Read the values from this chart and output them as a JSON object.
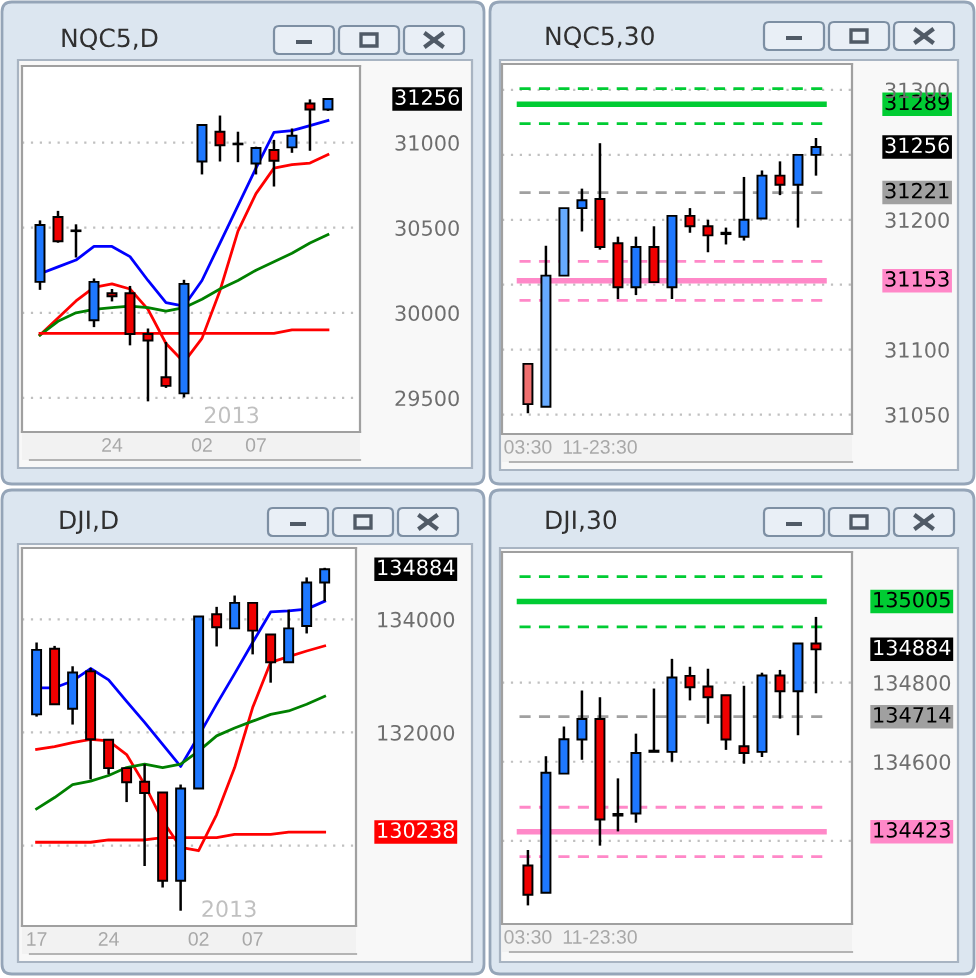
{
  "chart_data": [
    {
      "type": "candlestick",
      "title": "NQC5,D",
      "categories": [
        null,
        null,
        null,
        null,
        "24",
        null,
        null,
        null,
        null,
        "02",
        null,
        null,
        "07",
        null,
        null,
        null,
        null
      ],
      "ohlc": [
        [
          30182,
          30543,
          30135,
          30516
        ],
        [
          30563,
          30599,
          30412,
          30420
        ],
        [
          30480,
          30520,
          30325,
          30484
        ],
        [
          29956,
          30202,
          29916,
          30182
        ],
        [
          30115,
          30140,
          30067,
          30098
        ],
        [
          30115,
          30158,
          29809,
          29876
        ],
        [
          29876,
          29908,
          29480,
          29837
        ],
        [
          29622,
          29829,
          29559,
          29571
        ],
        [
          29527,
          30194,
          29503,
          30170
        ],
        [
          30889,
          31103,
          30813,
          31103
        ],
        [
          31064,
          31159,
          30889,
          30984
        ],
        [
          30990,
          31064,
          30885,
          30994
        ],
        [
          30877,
          30976,
          30813,
          30968
        ],
        [
          30956,
          31016,
          30742,
          30893
        ],
        [
          30972,
          31083,
          30940,
          31040
        ],
        [
          31230,
          31254,
          30952,
          31195
        ],
        [
          31195,
          31262,
          31186,
          31256
        ]
      ],
      "colors": [
        "#1e78ff",
        "#f00000",
        "#1e78ff",
        "#1e78ff",
        "#f00000",
        "#f00000",
        "#f00000",
        "#f00000",
        "#1e78ff",
        "#1e78ff",
        "#f00000",
        "#3399ff",
        "#1e78ff",
        "#f00000",
        "#1e78ff",
        "#f00000",
        "#1e78ff"
      ],
      "series": [
        {
          "type": "line",
          "color": "#0000ff",
          "values": [
            30230,
            30270,
            30310,
            30390,
            30390,
            30330,
            30190,
            30060,
            30040,
            30190,
            30410,
            30630,
            30850,
            31060,
            31070,
            31100,
            31130
          ]
        },
        {
          "type": "line",
          "color": "#ff0000",
          "values": [
            29870,
            29970,
            30070,
            30150,
            30170,
            30140,
            30020,
            29820,
            29710,
            29850,
            30130,
            30480,
            30700,
            30850,
            30870,
            30880,
            30930
          ]
        },
        {
          "type": "line",
          "color": "#008000",
          "values": [
            29870,
            29950,
            30000,
            30020,
            30030,
            30040,
            30030,
            30010,
            30030,
            30080,
            30140,
            30190,
            30250,
            30300,
            30350,
            30410,
            30460
          ]
        },
        {
          "type": "line",
          "color": "#ff0000",
          "values": [
            29880,
            29880,
            29880,
            29880,
            29880,
            29880,
            29880,
            29880,
            29880,
            29880,
            29880,
            29880,
            29880,
            29880,
            29900,
            29900,
            29900
          ]
        }
      ],
      "ylim": [
        29300,
        31450
      ],
      "yticks": [
        29500,
        30000,
        30500,
        31000
      ],
      "grid": "y",
      "annotations": [
        "31256",
        "2013"
      ]
    },
    {
      "type": "candlestick",
      "title": "NQC5,30",
      "categories": [
        "03:30",
        null,
        null,
        null,
        "11-23:30",
        null,
        null,
        null,
        null,
        null,
        null,
        null,
        null,
        null,
        null,
        null,
        null
      ],
      "ohlc": [
        [
          31089,
          31089,
          31051,
          31058
        ],
        [
          31056,
          31180,
          31056,
          31157
        ],
        [
          31157,
          31209,
          31157,
          31209
        ],
        [
          31209,
          31224,
          31191,
          31215
        ],
        [
          31216,
          31259,
          31177,
          31179
        ],
        [
          31182,
          31187,
          31139,
          31148
        ],
        [
          31148,
          31187,
          31142,
          31179
        ],
        [
          31179,
          31195,
          31152,
          31152
        ],
        [
          31148,
          31203,
          31139,
          31203
        ],
        [
          31203,
          31209,
          31190,
          31195
        ],
        [
          31195,
          31200,
          31175,
          31188
        ],
        [
          31189,
          31194,
          31181,
          31190
        ],
        [
          31187,
          31233,
          31184,
          31200
        ],
        [
          31201,
          31238,
          31201,
          31234
        ],
        [
          31234,
          31245,
          31219,
          31227
        ],
        [
          31227,
          31250,
          31194,
          31250
        ],
        [
          31250,
          31263,
          31234,
          31256
        ]
      ],
      "colors": [
        "#f07070",
        "#66aaff",
        "#66aaff",
        "#1e78ff",
        "#f00000",
        "#f00000",
        "#1e78ff",
        "#f00000",
        "#1e78ff",
        "#f00000",
        "#f00000",
        "#1e78ff",
        "#1e78ff",
        "#1e78ff",
        "#f00000",
        "#1e78ff",
        "#1e78ff"
      ],
      "ylim": [
        31035,
        31320
      ],
      "yticks": [
        31050,
        31100,
        {
          "value": 31150,
          "label": null
        },
        31200,
        {
          "value": 31250,
          "label": null
        },
        31300
      ],
      "grid": "y",
      "ref_lines": [
        {
          "axis": "y",
          "value": 31301,
          "color": "#00cc33",
          "line_style": "dashed"
        },
        {
          "axis": "y",
          "value": 31289,
          "label": "31289",
          "color": "#00cc33",
          "line_style": "solid"
        },
        {
          "axis": "y",
          "value": 31274,
          "color": "#00cc33",
          "line_style": "dashed"
        },
        {
          "axis": "y",
          "value": 31221,
          "label": "31221",
          "color": "#a0a0a0",
          "line_style": "dashed"
        },
        {
          "axis": "y",
          "value": 31168,
          "color": "#ff88c8",
          "line_style": "dashed"
        },
        {
          "axis": "y",
          "value": 31153,
          "label": "31153",
          "color": "#ff88c8",
          "line_style": "solid"
        },
        {
          "axis": "y",
          "value": 31138,
          "color": "#ff88c8",
          "line_style": "dashed"
        }
      ],
      "annotations": [
        "31256"
      ]
    },
    {
      "type": "candlestick",
      "title": "DJI,D",
      "categories": [
        "17",
        null,
        null,
        null,
        "24",
        null,
        null,
        null,
        null,
        "02",
        null,
        null,
        "07",
        null,
        null,
        null,
        null
      ],
      "ohlc": [
        [
          132320,
          133590,
          132280,
          133460
        ],
        [
          133480,
          133530,
          132500,
          132500
        ],
        [
          132420,
          133170,
          132140,
          133060
        ],
        [
          133080,
          133140,
          131170,
          131880
        ],
        [
          131870,
          131870,
          131260,
          131370
        ],
        [
          131370,
          131370,
          130770,
          131120
        ],
        [
          131130,
          131440,
          129640,
          130930
        ],
        [
          130940,
          130940,
          129260,
          129380
        ],
        [
          129380,
          131080,
          128850,
          131010
        ],
        [
          131010,
          134050,
          131010,
          134050
        ],
        [
          134090,
          134220,
          133520,
          133860
        ],
        [
          133840,
          134420,
          133840,
          134290
        ],
        [
          134290,
          134290,
          133380,
          133800
        ],
        [
          133730,
          133730,
          132880,
          133240
        ],
        [
          133240,
          134170,
          133240,
          133840
        ],
        [
          133880,
          134740,
          133750,
          134650
        ],
        [
          134650,
          134910,
          134320,
          134884
        ]
      ],
      "colors": [
        "#1e78ff",
        "#f00000",
        "#1e78ff",
        "#f00000",
        "#f00000",
        "#f00000",
        "#f00000",
        "#f00000",
        "#1e78ff",
        "#1e78ff",
        "#f00000",
        "#1e78ff",
        "#f00000",
        "#f00000",
        "#1e78ff",
        "#1e78ff",
        "#1e78ff"
      ],
      "series": [
        {
          "type": "line",
          "color": "#0000ff",
          "values": [
            132790,
            132790,
            132910,
            133130,
            132930,
            132550,
            132180,
            131790,
            131400,
            131940,
            132500,
            133040,
            133590,
            134130,
            134150,
            134180,
            134320
          ]
        },
        {
          "type": "line",
          "color": "#ff0000",
          "values": [
            131700,
            131750,
            131820,
            131880,
            131850,
            131610,
            131080,
            130440,
            129970,
            129910,
            130550,
            131380,
            132440,
            133240,
            133340,
            133440,
            133530
          ]
        },
        {
          "type": "line",
          "color": "#008000",
          "values": [
            130650,
            130850,
            131080,
            131140,
            131240,
            131380,
            131440,
            131380,
            131440,
            131670,
            131940,
            132080,
            132200,
            132320,
            132380,
            132500,
            132640
          ]
        },
        {
          "type": "line",
          "color": "#ff0000",
          "values": [
            130060,
            130060,
            130060,
            130060,
            130100,
            130100,
            130100,
            130140,
            130140,
            130140,
            130140,
            130200,
            130200,
            130200,
            130240,
            130240,
            130240
          ]
        }
      ],
      "ylim": [
        128580,
        135260
      ],
      "yticks": [
        {
          "value": 130000,
          "label": null
        },
        132000,
        134000
      ],
      "grid": "y",
      "annotations": [
        "134884",
        "2013",
        "130238"
      ]
    },
    {
      "type": "candlestick",
      "title": "DJI,30",
      "categories": [
        "03:30",
        null,
        null,
        null,
        "11-23:30",
        null,
        null,
        null,
        null,
        null,
        null,
        null,
        null,
        null,
        null,
        null,
        null
      ],
      "ohlc": [
        [
          134338,
          134377,
          134237,
          134264
        ],
        [
          134269,
          134614,
          134269,
          134572
        ],
        [
          134570,
          134689,
          134570,
          134657
        ],
        [
          134656,
          134780,
          134605,
          134708
        ],
        [
          134708,
          134763,
          134388,
          134454
        ],
        [
          134464,
          134558,
          134424,
          134468
        ],
        [
          134469,
          134671,
          134446,
          134622
        ],
        [
          134625,
          134785,
          134625,
          134628
        ],
        [
          134625,
          134860,
          134600,
          134813
        ],
        [
          134817,
          134840,
          134755,
          134788
        ],
        [
          134790,
          134835,
          134696,
          134763
        ],
        [
          134768,
          134768,
          134630,
          134656
        ],
        [
          134639,
          134792,
          134595,
          134622
        ],
        [
          134625,
          134825,
          134612,
          134818
        ],
        [
          134818,
          134832,
          134709,
          134778
        ],
        [
          134778,
          134899,
          134667,
          134899
        ],
        [
          134899,
          134966,
          134773,
          134884
        ]
      ],
      "colors": [
        "#f00000",
        "#1e78ff",
        "#1e78ff",
        "#1e78ff",
        "#f00000",
        "#3399ff",
        "#1e78ff",
        "#3399ff",
        "#1e78ff",
        "#f00000",
        "#f00000",
        "#f00000",
        "#f00000",
        "#1e78ff",
        "#f00000",
        "#1e78ff",
        "#f00000"
      ],
      "ylim": [
        134190,
        135130
      ],
      "yticks": [
        {
          "value": 134400,
          "label": null
        },
        134600,
        134800
      ],
      "grid": "y",
      "ref_lines": [
        {
          "axis": "y",
          "value": 135068,
          "color": "#00cc33",
          "line_style": "dashed"
        },
        {
          "axis": "y",
          "value": 135005,
          "label": "135005",
          "color": "#00cc33",
          "line_style": "solid"
        },
        {
          "axis": "y",
          "value": 134941,
          "color": "#00cc33",
          "line_style": "dashed"
        },
        {
          "axis": "y",
          "value": 134714,
          "label": "134714",
          "color": "#a0a0a0",
          "line_style": "dashed"
        },
        {
          "axis": "y",
          "value": 134485,
          "color": "#ff88c8",
          "line_style": "dashed"
        },
        {
          "axis": "y",
          "value": 134423,
          "label": "134423",
          "color": "#ff88c8",
          "line_style": "solid"
        },
        {
          "axis": "y",
          "value": 134360,
          "color": "#ff88c8",
          "line_style": "dashed"
        }
      ],
      "annotations": [
        "134884"
      ]
    }
  ]
}
